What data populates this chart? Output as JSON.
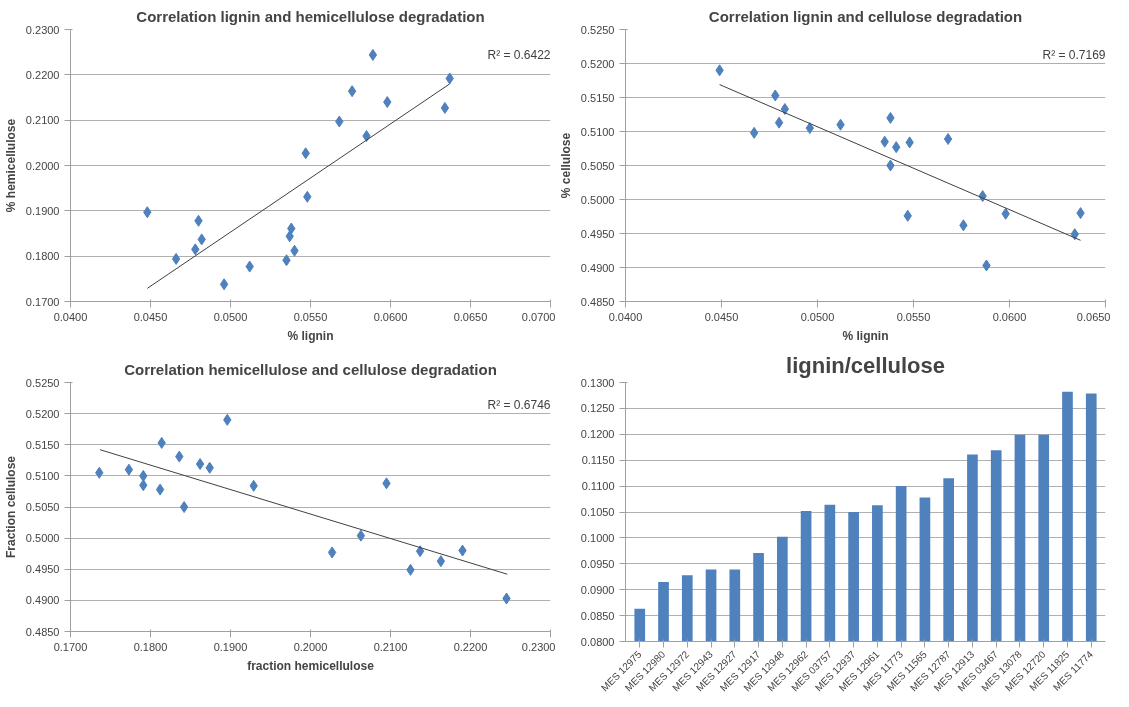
{
  "chart_data": [
    {
      "type": "scatter",
      "title": "Correlation lignin and hemicellulose degradation",
      "xlabel": "% lignin",
      "ylabel": "% hemicellulose",
      "grid": "y",
      "annotations": [
        "R² = 0.6422"
      ],
      "xlim": [
        0.04,
        0.07
      ],
      "xticks": [
        {
          "value": 0.04,
          "label": "0.0400"
        },
        {
          "value": 0.045,
          "label": "0.0450"
        },
        {
          "value": 0.05,
          "label": "0.0500"
        },
        {
          "value": 0.055,
          "label": "0.0550"
        },
        {
          "value": 0.06,
          "label": "0.0600"
        },
        {
          "value": 0.065,
          "label": "0.0650"
        },
        {
          "value": 0.07,
          "label": "0.0700"
        }
      ],
      "ylim": [
        0.17,
        0.23
      ],
      "yticks": [
        {
          "value": 0.17,
          "label": "0.1700"
        },
        {
          "value": 0.18,
          "label": "0.1800"
        },
        {
          "value": 0.19,
          "label": "0.1900"
        },
        {
          "value": 0.2,
          "label": "0.2000"
        },
        {
          "value": 0.21,
          "label": "0.2100"
        },
        {
          "value": 0.22,
          "label": "0.2200"
        },
        {
          "value": 0.23,
          "label": "0.2300"
        }
      ],
      "series": [
        {
          "type": "scatter",
          "marker": "diamond",
          "color": "#4f81bd",
          "x": [
            0.0448,
            0.0466,
            0.0478,
            0.048,
            0.0482,
            0.0496,
            0.0512,
            0.0535,
            0.0537,
            0.0538,
            0.054,
            0.0547,
            0.0548,
            0.0568,
            0.0576,
            0.0585,
            0.0589,
            0.0598,
            0.0634,
            0.0637
          ],
          "values": [
            0.1897,
            0.1794,
            0.1815,
            0.1878,
            0.1837,
            0.1738,
            0.1777,
            0.1791,
            0.1844,
            0.1861,
            0.1812,
            0.2027,
            0.1931,
            0.2097,
            0.2164,
            0.2065,
            0.2244,
            0.214,
            0.2127,
            0.2192
          ]
        },
        {
          "type": "line",
          "color": "#404040",
          "x": [
            0.0448,
            0.0637
          ],
          "values": [
            0.1729,
            0.218
          ]
        }
      ]
    },
    {
      "type": "scatter",
      "title": "Correlation lignin and cellulose degradation",
      "xlabel": "% lignin",
      "ylabel": "% cellulose",
      "grid": "y",
      "annotations": [
        "R² = 0.7169"
      ],
      "xlim": [
        0.04,
        0.065
      ],
      "xticks": [
        {
          "value": 0.04,
          "label": "0.0400"
        },
        {
          "value": 0.045,
          "label": "0.0450"
        },
        {
          "value": 0.05,
          "label": "0.0500"
        },
        {
          "value": 0.055,
          "label": "0.0550"
        },
        {
          "value": 0.06,
          "label": "0.0600"
        },
        {
          "value": 0.065,
          "label": "0.0650"
        }
      ],
      "ylim": [
        0.485,
        0.525
      ],
      "yticks": [
        {
          "value": 0.485,
          "label": "0.4850"
        },
        {
          "value": 0.49,
          "label": "0.4900"
        },
        {
          "value": 0.495,
          "label": "0.4950"
        },
        {
          "value": 0.5,
          "label": "0.5000"
        },
        {
          "value": 0.505,
          "label": "0.5050"
        },
        {
          "value": 0.51,
          "label": "0.5100"
        },
        {
          "value": 0.515,
          "label": "0.5150"
        },
        {
          "value": 0.52,
          "label": "0.5200"
        },
        {
          "value": 0.525,
          "label": "0.5250"
        }
      ],
      "series": [
        {
          "type": "scatter",
          "marker": "diamond",
          "color": "#4f81bd",
          "x": [
            0.0449,
            0.0467,
            0.0478,
            0.048,
            0.0483,
            0.0496,
            0.0512,
            0.0535,
            0.0538,
            0.0538,
            0.0541,
            0.0547,
            0.0548,
            0.0568,
            0.0576,
            0.0586,
            0.0588,
            0.0598,
            0.0634,
            0.0637
          ],
          "values": [
            0.519,
            0.5098,
            0.5153,
            0.5113,
            0.5133,
            0.5105,
            0.511,
            0.5085,
            0.512,
            0.505,
            0.5077,
            0.4976,
            0.5084,
            0.5089,
            0.4962,
            0.5005,
            0.4903,
            0.4979,
            0.4949,
            0.498
          ]
        },
        {
          "type": "line",
          "color": "#404040",
          "x": [
            0.0449,
            0.0637
          ],
          "values": [
            0.5169,
            0.494
          ]
        }
      ]
    },
    {
      "type": "scatter",
      "title": "Correlation hemicellulose and cellulose degradation",
      "xlabel": "fraction hemicellulose",
      "ylabel": "Fraction cellulose",
      "grid": "y",
      "annotations": [
        "R² = 0.6746"
      ],
      "xlim": [
        0.17,
        0.23
      ],
      "xticks": [
        {
          "value": 0.17,
          "label": "0.1700"
        },
        {
          "value": 0.18,
          "label": "0.1800"
        },
        {
          "value": 0.19,
          "label": "0.1900"
        },
        {
          "value": 0.2,
          "label": "0.2000"
        },
        {
          "value": 0.21,
          "label": "0.2100"
        },
        {
          "value": 0.22,
          "label": "0.2200"
        },
        {
          "value": 0.23,
          "label": "0.2300"
        }
      ],
      "ylim": [
        0.485,
        0.525
      ],
      "yticks": [
        {
          "value": 0.485,
          "label": "0.4850"
        },
        {
          "value": 0.49,
          "label": "0.4900"
        },
        {
          "value": 0.495,
          "label": "0.4950"
        },
        {
          "value": 0.5,
          "label": "0.5000"
        },
        {
          "value": 0.505,
          "label": "0.5050"
        },
        {
          "value": 0.51,
          "label": "0.5100"
        },
        {
          "value": 0.515,
          "label": "0.5150"
        },
        {
          "value": 0.52,
          "label": "0.5200"
        },
        {
          "value": 0.525,
          "label": "0.5250"
        }
      ],
      "series": [
        {
          "type": "scatter",
          "marker": "diamond",
          "color": "#4f81bd",
          "x": [
            0.1736,
            0.1773,
            0.1791,
            0.1791,
            0.1812,
            0.1814,
            0.1836,
            0.1842,
            0.1862,
            0.1874,
            0.1896,
            0.1929,
            0.2027,
            0.2063,
            0.2095,
            0.2125,
            0.2137,
            0.2163,
            0.219,
            0.2245
          ],
          "values": [
            0.5105,
            0.511,
            0.51,
            0.5085,
            0.5078,
            0.5153,
            0.5131,
            0.505,
            0.5119,
            0.5113,
            0.519,
            0.5084,
            0.4977,
            0.5004,
            0.5088,
            0.4949,
            0.4979,
            0.4963,
            0.498,
            0.4903
          ]
        },
        {
          "type": "line",
          "color": "#404040",
          "x": [
            0.1737,
            0.2246
          ],
          "values": [
            0.5142,
            0.4942
          ]
        }
      ]
    },
    {
      "type": "bar",
      "title": "lignin/cellulose",
      "grid": "y",
      "color": "#4f81bd",
      "categories": [
        "MES 12975",
        "MES 12980",
        "MES 12972",
        "MES 12943",
        "MES 12927",
        "MES 12917",
        "MES 12948",
        "MES 12962",
        "MES 03757",
        "MES 12937",
        "MES 12961",
        "MES 11773",
        "MES 11565",
        "MES 12787",
        "MES 12913",
        "MES 03467",
        "MES 13078",
        "MES 12720",
        "MES 11825",
        "MES 11774"
      ],
      "values": [
        0.0863,
        0.0915,
        0.0928,
        0.0939,
        0.0939,
        0.0971,
        0.1002,
        0.1052,
        0.1064,
        0.105,
        0.1063,
        0.11,
        0.1078,
        0.1115,
        0.1161,
        0.1169,
        0.1199,
        0.1199,
        0.1282,
        0.1279
      ],
      "ylim": [
        0.08,
        0.13
      ],
      "yticks": [
        {
          "value": 0.08,
          "label": "0.0800"
        },
        {
          "value": 0.085,
          "label": "0.0850"
        },
        {
          "value": 0.09,
          "label": "0.0900"
        },
        {
          "value": 0.095,
          "label": "0.0950"
        },
        {
          "value": 0.1,
          "label": "0.1000"
        },
        {
          "value": 0.105,
          "label": "0.1050"
        },
        {
          "value": 0.11,
          "label": "0.1100"
        },
        {
          "value": 0.115,
          "label": "0.1150"
        },
        {
          "value": 0.12,
          "label": "0.1200"
        },
        {
          "value": 0.125,
          "label": "0.1250"
        },
        {
          "value": 0.13,
          "label": "0.1300"
        }
      ]
    }
  ]
}
